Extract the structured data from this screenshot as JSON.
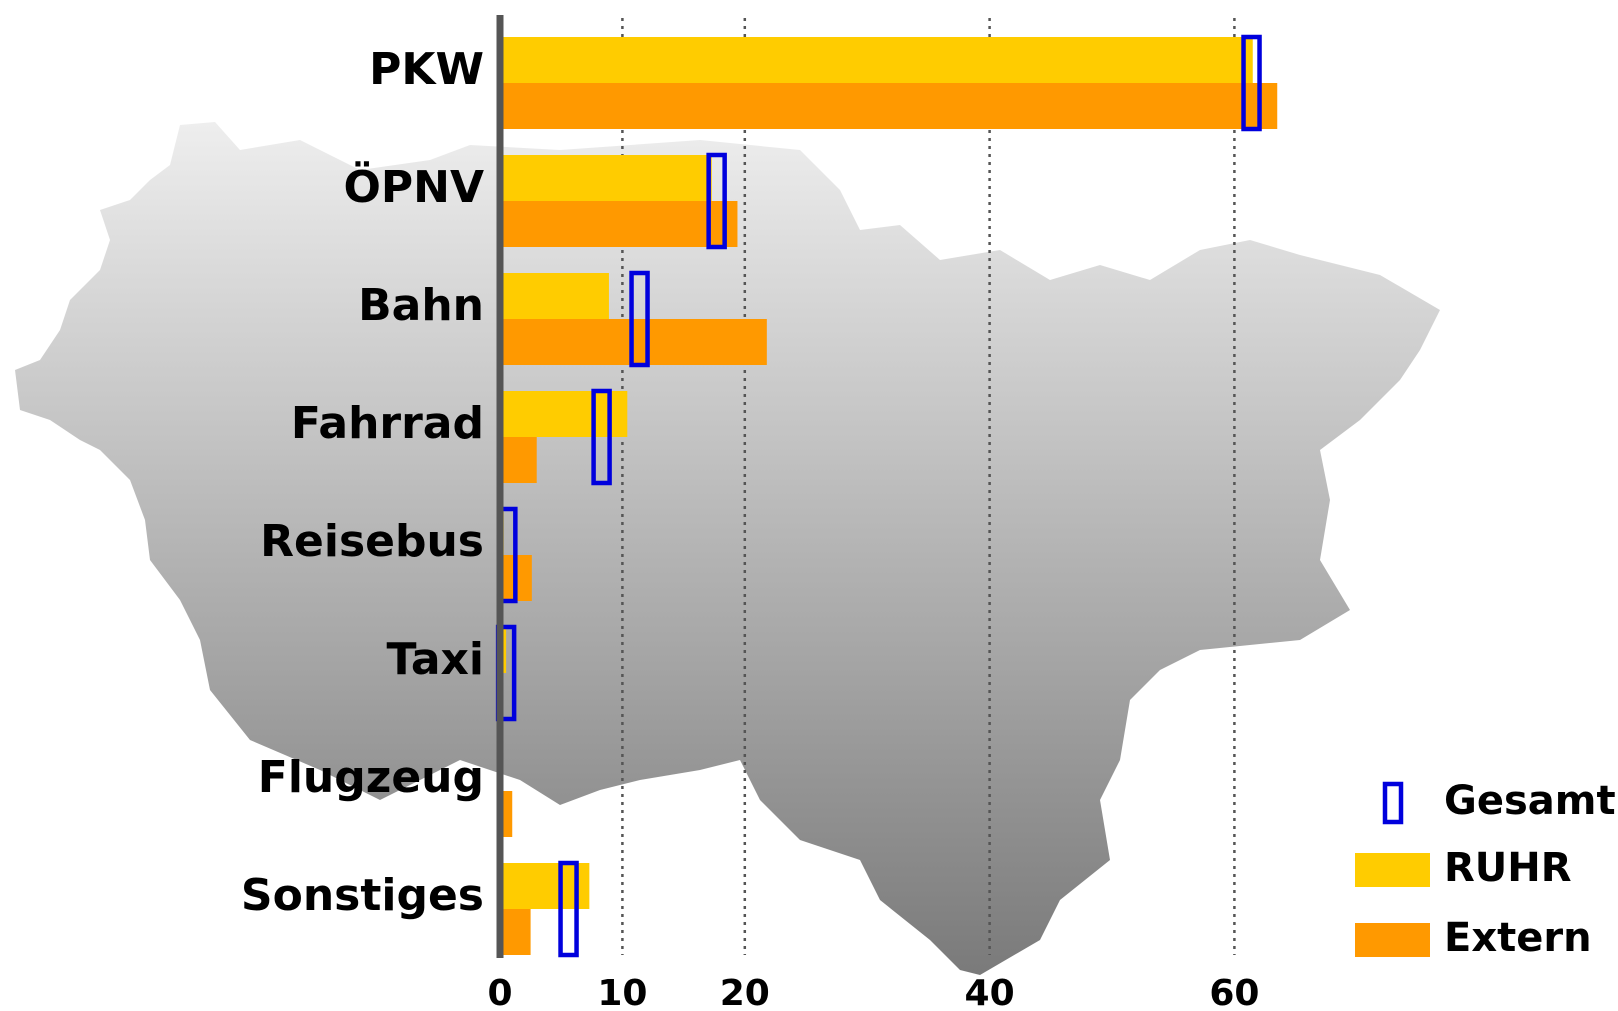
{
  "chart_data": {
    "type": "bar",
    "categories": [
      "PKW",
      "ÖPNV",
      "Bahn",
      "Fahrrad",
      "Reisebus",
      "Taxi",
      "Flugzeug",
      "Sonstiges"
    ],
    "series": [
      {
        "name": "RUHR",
        "color": "#ffcc00",
        "values": [
          61.5,
          17.3,
          8.9,
          10.4,
          0.3,
          0.5,
          0,
          7.3
        ]
      },
      {
        "name": "Extern",
        "color": "#ff9900",
        "values": [
          63.5,
          19.4,
          21.8,
          3.0,
          2.6,
          0,
          1.0,
          2.5
        ]
      },
      {
        "name": "Gesamt",
        "color": "#0000dd",
        "values": [
          61.4,
          17.7,
          11.4,
          8.3,
          0.6,
          0.5,
          null,
          5.6
        ]
      }
    ],
    "xlim": [
      0,
      66
    ],
    "xticks": [
      0,
      10,
      20,
      40,
      60
    ],
    "grid": true
  }
}
